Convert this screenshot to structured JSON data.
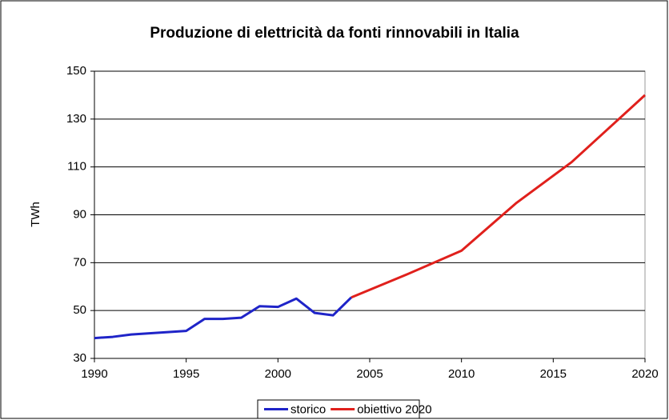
{
  "chart_data": {
    "type": "line",
    "title": "Produzione di elettricità da fonti rinnovabili in Italia",
    "ylabel": "TWh",
    "xlim": [
      1990,
      2020
    ],
    "xticks": [
      1990,
      1995,
      2000,
      2005,
      2010,
      2015,
      2020
    ],
    "ylim": [
      30,
      150
    ],
    "yticks": [
      30,
      50,
      70,
      90,
      110,
      130,
      150
    ],
    "grid": true,
    "legend": "bottom",
    "series": [
      {
        "name": "storico",
        "color": "#1f24c8",
        "x": [
          1990,
          1991,
          1992,
          1995,
          1996,
          1997,
          1998,
          1999,
          2000,
          2001,
          2002,
          2003,
          2004
        ],
        "values": [
          38.5,
          39,
          40,
          41.5,
          46.5,
          46.5,
          47,
          51.8,
          51.5,
          55,
          49,
          48,
          55.5
        ]
      },
      {
        "name": "obiettivo 2020",
        "color": "#e0201c",
        "x": [
          2004,
          2007,
          2010,
          2013,
          2016,
          2018,
          2020
        ],
        "values": [
          55.5,
          65,
          75,
          95,
          112,
          126,
          140
        ]
      }
    ]
  }
}
